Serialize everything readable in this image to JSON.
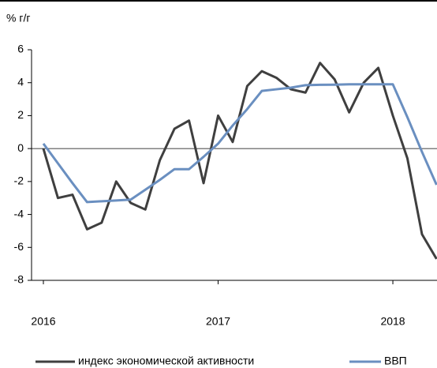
{
  "chart_data": {
    "type": "line",
    "y_label": "% г/г",
    "categories": [
      "2016",
      null,
      null,
      null,
      null,
      null,
      null,
      null,
      null,
      null,
      null,
      null,
      "2017",
      null,
      null,
      null,
      null,
      null,
      null,
      null,
      null,
      null,
      null,
      null,
      "2018",
      null,
      null,
      null
    ],
    "series": [
      {
        "name": "индекс экономической активности",
        "color": "#3f3f3f",
        "values": [
          0,
          -3.0,
          -2.8,
          -4.9,
          -4.5,
          -2.0,
          -3.3,
          -3.7,
          -0.7,
          1.2,
          1.7,
          -2.1,
          2.0,
          0.4,
          3.8,
          4.7,
          4.3,
          3.6,
          3.4,
          5.2,
          4.2,
          2.2,
          4.0,
          4.9,
          2.0,
          -0.6,
          -5.2,
          -6.7
        ]
      },
      {
        "name": "ВВП",
        "color": "#6a8fc0",
        "values": [
          0.3,
          -0.9,
          -2.1,
          -3.25,
          -3.2,
          -3.15,
          -3.1,
          -2.5,
          -1.9,
          -1.25,
          -1.25,
          -0.5,
          0.3,
          1.4,
          2.4,
          3.5,
          3.6,
          3.7,
          3.85,
          3.87,
          3.88,
          3.9,
          3.9,
          3.9,
          3.9,
          1.9,
          -0.2,
          -2.2
        ]
      }
    ],
    "ylim": [
      -8,
      6
    ],
    "yticks": [
      -8,
      -6,
      -4,
      -2,
      0,
      2,
      4,
      6
    ]
  }
}
